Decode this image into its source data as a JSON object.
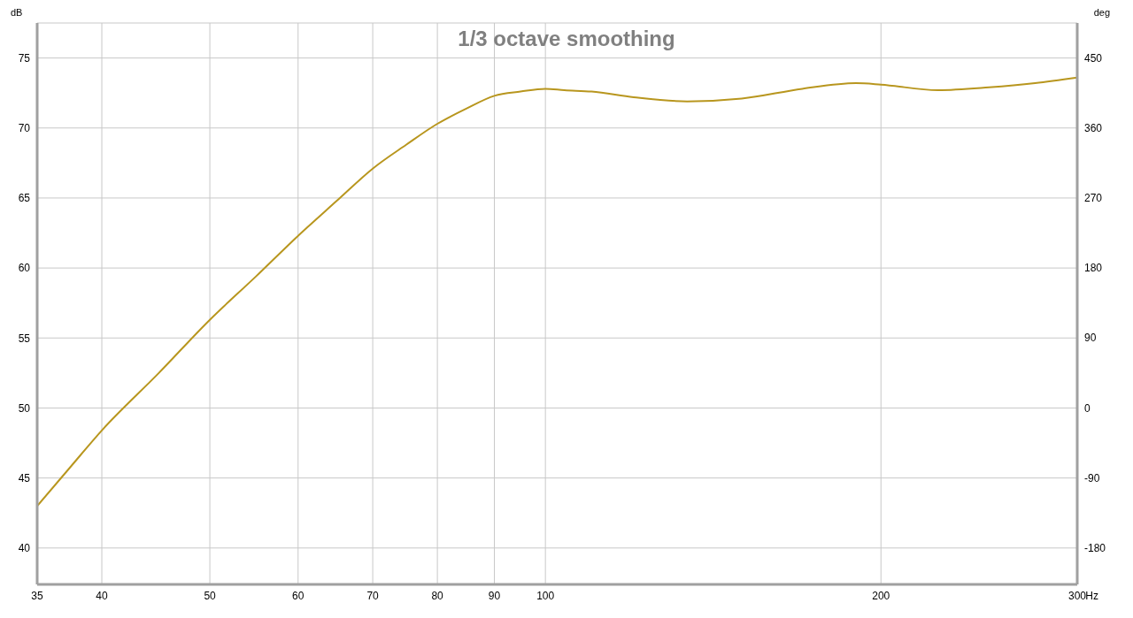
{
  "chart_data": {
    "type": "line",
    "title": "1/3 octave smoothing",
    "xlabel": "Hz",
    "ylabel": "dB",
    "y2label": "deg",
    "x": [
      35,
      37.5,
      40,
      45,
      50,
      55,
      60,
      65,
      70,
      75,
      80,
      85,
      90,
      95,
      100,
      104,
      110,
      120,
      134,
      150,
      170,
      190,
      200,
      225,
      250,
      275,
      300
    ],
    "series": [
      {
        "color": "#b8961e",
        "values": [
          43.0,
          45.8,
          48.4,
          52.5,
          56.3,
          59.4,
          62.3,
          64.8,
          67.1,
          68.8,
          70.3,
          71.4,
          72.3,
          72.6,
          72.8,
          72.7,
          72.6,
          72.2,
          71.9,
          72.1,
          72.8,
          73.2,
          73.1,
          72.7,
          72.9,
          73.2,
          73.6
        ]
      }
    ],
    "log": "x",
    "xlim": [
      35,
      300
    ],
    "xticks": [
      35,
      40,
      50,
      60,
      70,
      80,
      90,
      100,
      200,
      300
    ],
    "ylim": [
      37.4,
      77.5
    ],
    "yticks": [
      40,
      45,
      50,
      55,
      60,
      65,
      70,
      75
    ],
    "y2lim": [
      -227,
      495
    ],
    "y2ticks": [
      -180,
      -90,
      0,
      90,
      180,
      270,
      360,
      450
    ],
    "grid": true,
    "legend": false,
    "marker": "none",
    "line_style": "solid"
  }
}
